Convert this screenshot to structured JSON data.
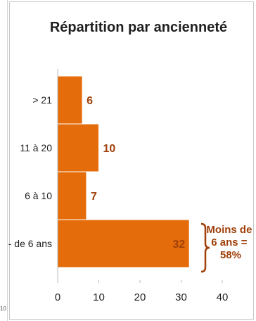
{
  "left_fragment": "10",
  "chart_data": {
    "type": "bar",
    "orientation": "horizontal",
    "title": "Répartition par ancienneté",
    "categories": [
      "> 21",
      "11 à 20",
      "6 à 10",
      "- de 6 ans"
    ],
    "values": [
      6,
      10,
      7,
      32
    ],
    "data_labels": [
      "6",
      "10",
      "7",
      "32"
    ],
    "xlim": [
      0,
      40
    ],
    "xticks": [
      "0",
      "10",
      "20",
      "30",
      "40"
    ],
    "xlabel": "",
    "ylabel": "",
    "grid": false,
    "bar_color": "#E46C0A",
    "bar_edge_color": "#ffffff",
    "label_color": "#A0400A",
    "annotation": {
      "lines": [
        "Moins de",
        "6 ans =",
        "58%"
      ],
      "color": "#A0400A"
    }
  }
}
